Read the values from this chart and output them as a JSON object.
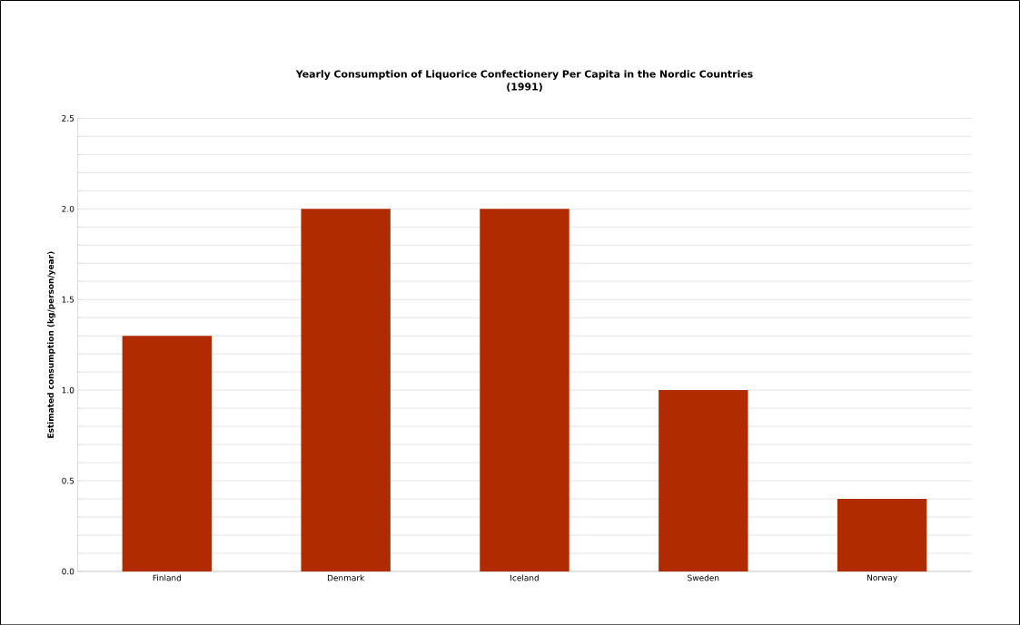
{
  "chart_data": {
    "type": "bar",
    "title": "Yearly Consumption of Liquorice Confectionery Per Capita in the Nordic Countries\n(1991)",
    "ylabel": "Estimated consumption (kg/person/year)",
    "categories": [
      "Finland",
      "Denmark",
      "Iceland",
      "Sweden",
      "Norway"
    ],
    "values": [
      1.3,
      2.0,
      2.0,
      1.0,
      0.4
    ],
    "color": "#b02c00",
    "ylim": [
      0,
      2.5
    ],
    "yticks": [
      {
        "value": 0,
        "label": "0.0"
      },
      {
        "value": 0.1,
        "label": null
      },
      {
        "value": 0.2,
        "label": null
      },
      {
        "value": 0.3,
        "label": null
      },
      {
        "value": 0.4,
        "label": null
      },
      {
        "value": 0.5,
        "label": "0.5"
      },
      {
        "value": 0.6,
        "label": null
      },
      {
        "value": 0.7,
        "label": null
      },
      {
        "value": 0.8,
        "label": null
      },
      {
        "value": 0.9,
        "label": null
      },
      {
        "value": 1.0,
        "label": "1.0"
      },
      {
        "value": 1.1,
        "label": null
      },
      {
        "value": 1.2,
        "label": null
      },
      {
        "value": 1.3,
        "label": null
      },
      {
        "value": 1.4,
        "label": null
      },
      {
        "value": 1.5,
        "label": "1.5"
      },
      {
        "value": 1.6,
        "label": null
      },
      {
        "value": 1.7,
        "label": null
      },
      {
        "value": 1.8,
        "label": null
      },
      {
        "value": 1.9,
        "label": null
      },
      {
        "value": 2.0,
        "label": "2.0"
      },
      {
        "value": 2.1,
        "label": null
      },
      {
        "value": 2.2,
        "label": null
      },
      {
        "value": 2.3,
        "label": null
      },
      {
        "value": 2.4,
        "label": null
      },
      {
        "value": 2.5,
        "label": "2.5"
      }
    ],
    "grid": "y"
  }
}
